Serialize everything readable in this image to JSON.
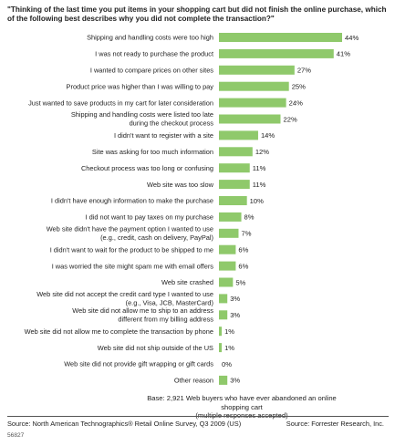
{
  "chart_data": {
    "type": "bar",
    "orientation": "horizontal",
    "title": "\"Thinking of the last time you put items in your shopping cart but did not finish the online purchase, which of the following best describes why you did not complete the transaction?\"",
    "categories": [
      [
        "Shipping and handling costs were too high"
      ],
      [
        "I was not ready to purchase the product"
      ],
      [
        "I wanted to compare prices on other sites"
      ],
      [
        "Product price was higher than I was willing to pay"
      ],
      [
        "Just wanted to save products in my cart for later consideration"
      ],
      [
        "Shipping and handling costs were listed too late",
        "during the checkout process"
      ],
      [
        "I didn't want to register with a site"
      ],
      [
        "Site was asking for too much information"
      ],
      [
        "Checkout process was too long or confusing"
      ],
      [
        "Web site was too slow"
      ],
      [
        "I didn't have enough information to make the purchase"
      ],
      [
        "I did not want to pay taxes on my purchase"
      ],
      [
        "Web site didn't have the payment option I wanted to use",
        "(e.g., credit, cash on delivery, PayPal)"
      ],
      [
        "I didn't want to wait for the product to be shipped to me"
      ],
      [
        "I was worried the site might spam me with email offers"
      ],
      [
        "Web site crashed"
      ],
      [
        "Web site did not accept the credit card type I wanted to use",
        "(e.g., Visa, JCB, MasterCard)"
      ],
      [
        "Web site did not allow me to ship to an address",
        "different from my billing address"
      ],
      [
        "Web site did not allow me to complete the transaction by phone"
      ],
      [
        "Web site did not ship outside of the US"
      ],
      [
        "Web site did not provide gift wrapping or gift cards"
      ],
      [
        "Other reason"
      ]
    ],
    "values": [
      44,
      41,
      27,
      25,
      24,
      22,
      14,
      12,
      11,
      11,
      10,
      8,
      7,
      6,
      6,
      5,
      3,
      3,
      1,
      1,
      0,
      3
    ],
    "value_labels": [
      "44%",
      "41%",
      "27%",
      "25%",
      "24%",
      "22%",
      "14%",
      "12%",
      "11%",
      "11%",
      "10%",
      "8%",
      "7%",
      "6%",
      "6%",
      "5%",
      "3%",
      "3%",
      "1%",
      "1%",
      "0%",
      "3%"
    ],
    "bar_color": "#8fc96b",
    "grid": false
  },
  "footer": {
    "base_line1": "Base: 2,921 Web buyers who have ever abandoned an online shopping cart",
    "base_line2": "(multiple responses accepted)",
    "source_left": "Source: North American Technographics® Retail Online Survey, Q3 2009 (US)",
    "source_right": "Source: Forrester Research, Inc.",
    "figure_id": "56827"
  }
}
